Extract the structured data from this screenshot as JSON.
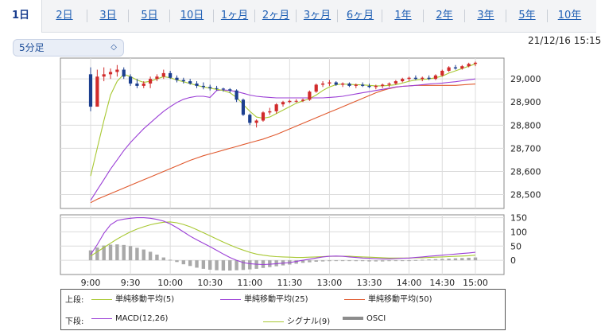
{
  "tabs": [
    {
      "label": "1日",
      "active": true
    },
    {
      "label": "2日"
    },
    {
      "label": "3日"
    },
    {
      "label": "5日"
    },
    {
      "label": "10日"
    },
    {
      "label": "1ヶ月"
    },
    {
      "label": "2ヶ月"
    },
    {
      "label": "3ヶ月"
    },
    {
      "label": "6ヶ月"
    },
    {
      "label": "1年"
    },
    {
      "label": "2年"
    },
    {
      "label": "3年"
    },
    {
      "label": "5年"
    },
    {
      "label": "10年"
    }
  ],
  "period_select": {
    "value": "5分足"
  },
  "timestamp": "21/12/16 15:15",
  "legend": {
    "upper_label": "上段:",
    "lower_label": "下段:",
    "upper_items": [
      {
        "name": "単純移動平均(5)",
        "color": "#a8c832"
      },
      {
        "name": "単純移動平均(25)",
        "color": "#9b3fd6"
      },
      {
        "name": "単純移動平均(50)",
        "color": "#e0582d"
      }
    ],
    "lower_items": [
      {
        "name": "MACD(12,26)",
        "color": "#9b3fd6"
      },
      {
        "name": "シグナル(9)",
        "color": "#a8c832"
      },
      {
        "name": "OSCI",
        "color": "#8c8c8c"
      }
    ]
  },
  "chart_data": [
    {
      "type": "candlestick",
      "y_ticks": [
        "28,500",
        "28,600",
        "28,700",
        "28,800",
        "28,900",
        "29,000"
      ],
      "ylim": [
        28440,
        29090
      ],
      "x_ticks": [
        "9:00",
        "9:30",
        "10:00",
        "10:30",
        "11:00",
        "11:30",
        "13:00",
        "13:30",
        "14:00",
        "14:30",
        "15:00"
      ],
      "candle_colors": {
        "up": "#d12b2b",
        "down": "#1c3f8f"
      },
      "candles": [
        [
          29020,
          29050,
          28860,
          28880
        ],
        [
          28880,
          29040,
          28880,
          29010
        ],
        [
          29010,
          29050,
          28990,
          29020
        ],
        [
          29020,
          29045,
          29000,
          29030
        ],
        [
          29030,
          29060,
          29010,
          29040
        ],
        [
          29040,
          29050,
          29000,
          29010
        ],
        [
          29010,
          29020,
          28970,
          28980
        ],
        [
          28980,
          29000,
          28960,
          28970
        ],
        [
          28970,
          28990,
          28960,
          28980
        ],
        [
          28980,
          29010,
          28960,
          29000
        ],
        [
          29000,
          29020,
          28990,
          29010
        ],
        [
          29010,
          29040,
          29000,
          29025
        ],
        [
          29025,
          29035,
          29000,
          29005
        ],
        [
          29005,
          29015,
          28985,
          28995
        ],
        [
          28995,
          29005,
          28980,
          28990
        ],
        [
          28990,
          29000,
          28975,
          28980
        ],
        [
          28980,
          28990,
          28960,
          28970
        ],
        [
          28970,
          28985,
          28955,
          28965
        ],
        [
          28965,
          28975,
          28950,
          28960
        ],
        [
          28960,
          28970,
          28950,
          28958
        ],
        [
          28958,
          28962,
          28945,
          28955
        ],
        [
          28955,
          28960,
          28940,
          28950
        ],
        [
          28950,
          28955,
          28900,
          28910
        ],
        [
          28910,
          28915,
          28840,
          28845
        ],
        [
          28845,
          28850,
          28800,
          28810
        ],
        [
          28810,
          28825,
          28790,
          28820
        ],
        [
          28820,
          28860,
          28815,
          28855
        ],
        [
          28855,
          28875,
          28845,
          28860
        ],
        [
          28860,
          28895,
          28850,
          28890
        ],
        [
          28890,
          28905,
          28880,
          28900
        ],
        [
          28900,
          28910,
          28895,
          28905
        ],
        [
          28905,
          28912,
          28898,
          28905
        ],
        [
          28905,
          28915,
          28900,
          28910
        ],
        [
          28910,
          28950,
          28905,
          28945
        ],
        [
          28945,
          28980,
          28940,
          28975
        ],
        [
          28975,
          28990,
          28965,
          28980
        ],
        [
          28980,
          28995,
          28970,
          28985
        ],
        [
          28985,
          28990,
          28970,
          28975
        ],
        [
          28975,
          28985,
          28965,
          28980
        ],
        [
          28980,
          28985,
          28965,
          28970
        ],
        [
          28970,
          28980,
          28960,
          28975
        ],
        [
          28975,
          28985,
          28965,
          28970
        ],
        [
          28970,
          28980,
          28960,
          28965
        ],
        [
          28965,
          28975,
          28955,
          28970
        ],
        [
          28970,
          28980,
          28960,
          28975
        ],
        [
          28975,
          28985,
          28965,
          28980
        ],
        [
          28980,
          28995,
          28975,
          28990
        ],
        [
          28990,
          29005,
          28985,
          29000
        ],
        [
          29000,
          29010,
          28990,
          29005
        ],
        [
          29005,
          29015,
          28995,
          29000
        ],
        [
          29000,
          29010,
          28990,
          29005
        ],
        [
          29005,
          29015,
          28995,
          29000
        ],
        [
          29000,
          29020,
          28995,
          29015
        ],
        [
          29015,
          29040,
          29010,
          29035
        ],
        [
          29035,
          29055,
          29030,
          29050
        ],
        [
          29050,
          29060,
          29040,
          29045
        ],
        [
          29045,
          29060,
          29040,
          29055
        ],
        [
          29055,
          29070,
          29050,
          29065
        ],
        [
          29065,
          29075,
          29055,
          29070
        ]
      ],
      "sma5": [
        28580,
        28700,
        28820,
        28930,
        28990,
        29020,
        29010,
        28995,
        28985,
        28990,
        29000,
        29010,
        29005,
        28995,
        28988,
        28980,
        28972,
        28965,
        28960,
        28955,
        28950,
        28940,
        28920,
        28890,
        28860,
        28835,
        28830,
        28835,
        28850,
        28865,
        28880,
        28895,
        28905,
        28915,
        28930,
        28950,
        28965,
        28975,
        28978,
        28976,
        28975,
        28974,
        28972,
        28970,
        28970,
        28972,
        28975,
        28982,
        28990,
        28995,
        28998,
        29000,
        29005,
        29012,
        29025,
        29035,
        29045,
        29055,
        29065
      ],
      "sma25": [
        28475,
        28520,
        28565,
        28610,
        28650,
        28690,
        28725,
        28755,
        28785,
        28810,
        28835,
        28860,
        28880,
        28898,
        28912,
        28920,
        28925,
        28925,
        28920,
        28950,
        28952,
        28950,
        28945,
        28938,
        28930,
        28925,
        28922,
        28920,
        28918,
        28918,
        28918,
        28918,
        28918,
        28918,
        28918,
        28918,
        28920,
        28922,
        28925,
        28930,
        28935,
        28940,
        28945,
        28950,
        28955,
        28960,
        28965,
        28968,
        28970,
        28972,
        28975,
        28978,
        28980,
        28982,
        28985,
        28988,
        28992,
        28996,
        29000
      ],
      "sma50": [
        28465,
        28480,
        28492,
        28504,
        28516,
        28528,
        28540,
        28552,
        28564,
        28576,
        28588,
        28600,
        28612,
        28624,
        28636,
        28648,
        28658,
        28668,
        28676,
        28684,
        28692,
        28700,
        28708,
        28716,
        28724,
        28732,
        28740,
        28750,
        28760,
        28772,
        28784,
        28796,
        28808,
        28820,
        28832,
        28844,
        28856,
        28868,
        28880,
        28892,
        28904,
        28916,
        28928,
        28940,
        28950,
        28958,
        28964,
        28968,
        28970,
        28972,
        28972,
        28972,
        28972,
        28972,
        28972,
        28972,
        28974,
        28976,
        28978
      ]
    },
    {
      "type": "macd",
      "y_ticks": [
        "150",
        "100",
        "50",
        "0"
      ],
      "ylim": [
        -50,
        160
      ],
      "macd": [
        20,
        55,
        95,
        125,
        140,
        145,
        148,
        150,
        150,
        148,
        144,
        138,
        128,
        115,
        100,
        85,
        72,
        60,
        48,
        35,
        22,
        10,
        0,
        -8,
        -12,
        -14,
        -15,
        -14,
        -12,
        -10,
        -8,
        -4,
        0,
        4,
        8,
        12,
        14,
        15,
        14,
        12,
        10,
        8,
        7,
        6,
        5,
        5,
        6,
        7,
        8,
        10,
        12,
        14,
        16,
        18,
        20,
        22,
        24,
        26,
        28
      ],
      "signal": [
        15,
        30,
        45,
        60,
        75,
        88,
        100,
        110,
        118,
        125,
        130,
        134,
        135,
        132,
        126,
        118,
        108,
        97,
        86,
        75,
        64,
        54,
        44,
        36,
        28,
        22,
        18,
        15,
        13,
        12,
        11,
        10,
        10,
        11,
        12,
        13,
        14,
        14,
        14,
        14,
        13,
        12,
        11,
        10,
        9,
        8,
        8,
        8,
        8,
        9,
        9,
        10,
        11,
        12,
        13,
        14,
        15,
        16,
        18
      ],
      "osci": [
        35,
        45,
        52,
        55,
        56,
        54,
        50,
        44,
        38,
        30,
        20,
        10,
        2,
        -6,
        -14,
        -20,
        -26,
        -30,
        -33,
        -35,
        -36,
        -36,
        -35,
        -34,
        -32,
        -30,
        -27,
        -24,
        -21,
        -18,
        -15,
        -12,
        -9,
        -7,
        -5,
        -4,
        -3,
        -2,
        -2,
        -2,
        -3,
        -3,
        -4,
        -4,
        -4,
        -3,
        -2,
        -1,
        0,
        1,
        2,
        3,
        4,
        5,
        6,
        7,
        8,
        9,
        10
      ]
    }
  ]
}
